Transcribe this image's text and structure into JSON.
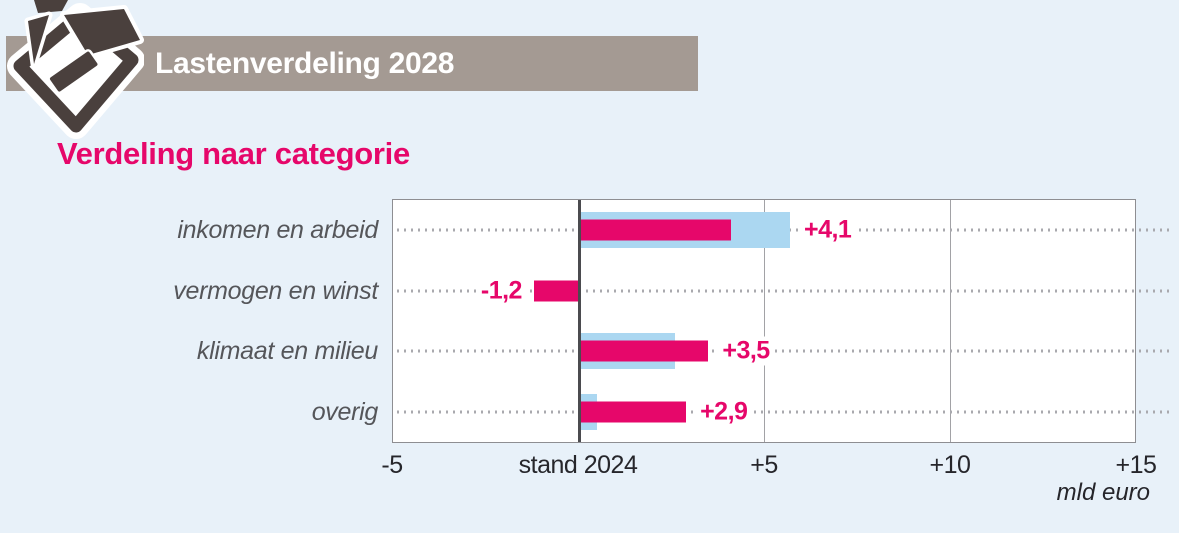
{
  "header": {
    "title": "Lastenverdeling 2028",
    "icon": "open-moneybag-icon"
  },
  "chart_data": {
    "type": "bar",
    "orientation": "horizontal",
    "title": "Verdeling naar categorie",
    "unit_label": "mld euro",
    "categories": [
      "inkomen en arbeid",
      "vermogen en winst",
      "klimaat en milieu",
      "overig"
    ],
    "series": [
      {
        "name": "blue",
        "color": "#abd7f1",
        "values": [
          5.7,
          0,
          2.6,
          0.5
        ]
      },
      {
        "name": "pink",
        "color": "#e6076a",
        "values": [
          4.1,
          -1.2,
          3.5,
          2.9
        ]
      }
    ],
    "value_labels": [
      "+4,1",
      "-1,2",
      "+3,5",
      "+2,9"
    ],
    "xlim": [
      -5,
      15
    ],
    "ticks": [
      {
        "v": -5,
        "label": "-5"
      },
      {
        "v": 0,
        "label": "stand 2024"
      },
      {
        "v": 5,
        "label": "+5"
      },
      {
        "v": 10,
        "label": "+10"
      },
      {
        "v": 15,
        "label": "+15"
      }
    ],
    "gridlines": [
      5,
      10
    ],
    "zero_value": 0,
    "grid": "vertical gridlines at +5 and +10, bold zero axis labeled stand 2024, dotted leader line per row"
  },
  "colors": {
    "background": "#e8f1f9",
    "header_band": "#a49a93",
    "header_text": "#ffffff",
    "accent_pink": "#e6076a",
    "bar_blue": "#abd7f1",
    "category_label": "#55565a",
    "axis_text": "#26262b",
    "icon_dark": "#4a403d",
    "grid_line": "#a2a2a6",
    "zero_line": "#4b4b4f",
    "plot_background": "#ffffff"
  }
}
